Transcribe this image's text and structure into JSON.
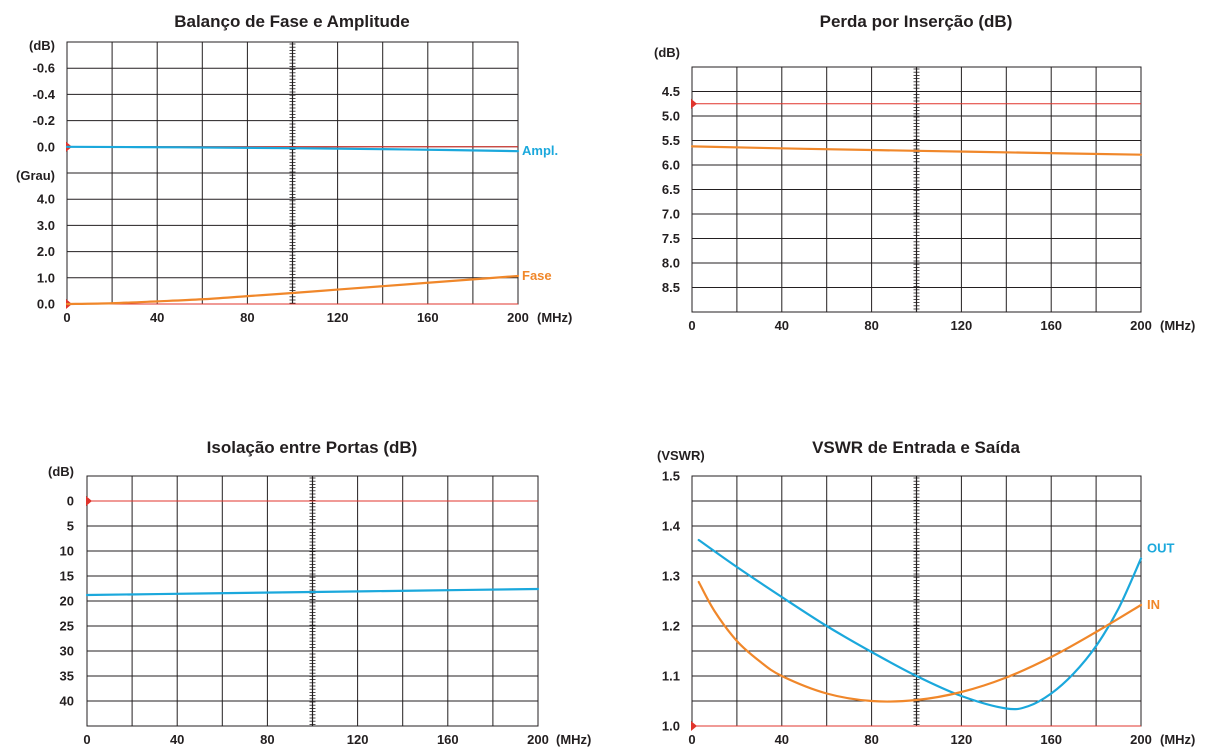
{
  "colors": {
    "blue": "#1ba8dc",
    "orange": "#f0872a",
    "red": "#e0342c",
    "grid": "#231f20"
  },
  "chart_data": [
    {
      "type": "line",
      "title": "Balanço de Fase e Amplitude",
      "xunit": "(MHz)",
      "xticks": [
        "0",
        "40",
        "80",
        "120",
        "160",
        "200"
      ],
      "xlim": [
        0,
        200
      ],
      "panels": [
        {
          "unit": "(dB)",
          "yticks": [
            "-0.6",
            "-0.4",
            "-0.2",
            "0.0"
          ],
          "ylim": [
            -0.7,
            0.0
          ],
          "reference": 0.0,
          "series": [
            {
              "name": "Ampl.",
              "color": "blue",
              "x": [
                0,
                50,
                100,
                150,
                200
              ],
              "y": [
                0.0,
                0.003,
                0.008,
                0.015,
                0.025
              ]
            }
          ]
        },
        {
          "unit": "(Grau)",
          "yticks": [
            "4.0",
            "3.0",
            "2.0",
            "1.0",
            "0.0"
          ],
          "ylim": [
            0.0,
            5.0
          ],
          "reference": 0.0,
          "series": [
            {
              "name": "Fase",
              "color": "orange",
              "x": [
                0,
                20,
                40,
                60,
                80,
                100,
                120,
                140,
                160,
                180,
                200
              ],
              "y": [
                0.0,
                0.03,
                0.1,
                0.18,
                0.3,
                0.42,
                0.55,
                0.68,
                0.81,
                0.94,
                1.07
              ]
            }
          ]
        }
      ]
    },
    {
      "type": "line",
      "title": "Perda por Inserção (dB)",
      "yunit": "(dB)",
      "xunit": "(MHz)",
      "xticks": [
        "0",
        "40",
        "80",
        "120",
        "160",
        "200"
      ],
      "yticks": [
        "4.5",
        "5.0",
        "5.5",
        "6.0",
        "6.5",
        "7.0",
        "7.5",
        "8.0",
        "8.5"
      ],
      "xlim": [
        0,
        200
      ],
      "ylim": [
        4.0,
        9.0
      ],
      "reference": 4.75,
      "series": [
        {
          "name": "",
          "color": "orange",
          "x": [
            0,
            50,
            100,
            150,
            200
          ],
          "y": [
            5.62,
            5.67,
            5.71,
            5.75,
            5.79
          ]
        }
      ]
    },
    {
      "type": "line",
      "title": "Isolação entre Portas (dB)",
      "yunit": "(dB)",
      "xunit": "(MHz)",
      "xticks": [
        "0",
        "40",
        "80",
        "120",
        "160",
        "200"
      ],
      "yticks": [
        "0",
        "5",
        "10",
        "15",
        "20",
        "25",
        "30",
        "35",
        "40"
      ],
      "xlim": [
        0,
        200
      ],
      "ylim": [
        -5,
        45
      ],
      "reference": 0,
      "series": [
        {
          "name": "",
          "color": "blue",
          "x": [
            0,
            50,
            100,
            150,
            200
          ],
          "y": [
            18.8,
            18.5,
            18.2,
            17.9,
            17.6
          ]
        }
      ]
    },
    {
      "type": "line",
      "title": "VSWR de Entrada e Saída",
      "yunit": "(VSWR)",
      "xunit": "(MHz)",
      "xticks": [
        "0",
        "40",
        "80",
        "120",
        "160",
        "200"
      ],
      "yticks": [
        "1.5",
        "1.4",
        "1.3",
        "1.2",
        "1.1",
        "1.0"
      ],
      "xlim": [
        0,
        200
      ],
      "ylim": [
        1.0,
        1.5
      ],
      "reference": 1.0,
      "series": [
        {
          "name": "OUT",
          "color": "blue",
          "x": [
            3,
            20,
            40,
            60,
            80,
            100,
            120,
            140,
            150,
            160,
            170,
            180,
            190,
            200
          ],
          "y": [
            1.372,
            1.318,
            1.258,
            1.2,
            1.148,
            1.1,
            1.06,
            1.035,
            1.04,
            1.065,
            1.105,
            1.16,
            1.235,
            1.335
          ]
        },
        {
          "name": "IN",
          "color": "orange",
          "x": [
            3,
            10,
            20,
            30,
            40,
            60,
            80,
            100,
            120,
            140,
            160,
            180,
            200
          ],
          "y": [
            1.288,
            1.23,
            1.17,
            1.13,
            1.1,
            1.065,
            1.05,
            1.052,
            1.068,
            1.097,
            1.138,
            1.188,
            1.242
          ]
        }
      ]
    }
  ]
}
